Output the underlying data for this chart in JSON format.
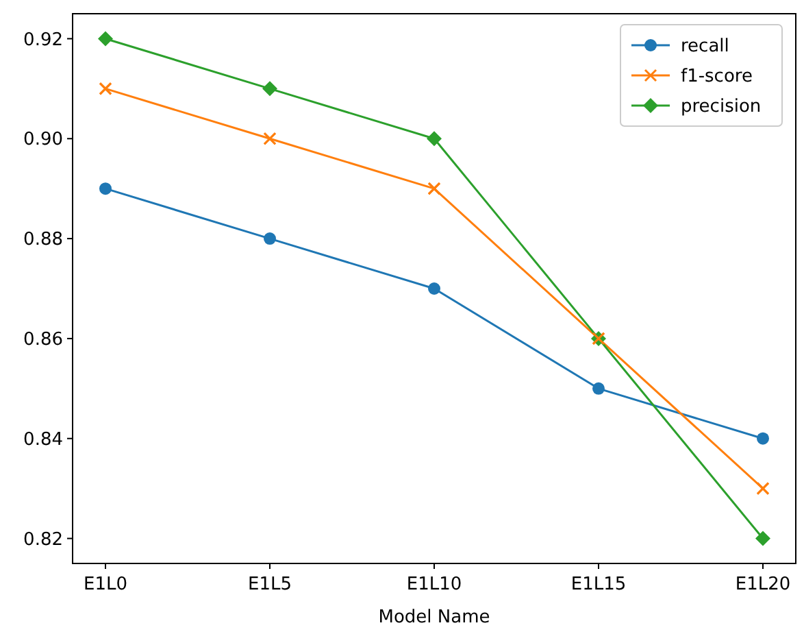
{
  "chart_data": {
    "type": "line",
    "xlabel": "Model Name",
    "categories": [
      "E1L0",
      "E1L5",
      "E1L10",
      "E1L15",
      "E1L20"
    ],
    "series": [
      {
        "name": "recall",
        "color": "#1f77b4",
        "marker": "circle",
        "values": [
          0.89,
          0.88,
          0.87,
          0.85,
          0.84
        ]
      },
      {
        "name": "f1-score",
        "color": "#ff7f0e",
        "marker": "cross",
        "values": [
          0.91,
          0.9,
          0.89,
          0.86,
          0.83
        ]
      },
      {
        "name": "precision",
        "color": "#2ca02c",
        "marker": "diamond",
        "values": [
          0.92,
          0.91,
          0.9,
          0.86,
          0.82
        ]
      }
    ],
    "ylim": [
      0.815,
      0.925
    ],
    "yticks": [
      {
        "value": 0.82,
        "label": "0.82"
      },
      {
        "value": 0.84,
        "label": "0.84"
      },
      {
        "value": 0.86,
        "label": "0.86"
      },
      {
        "value": 0.88,
        "label": "0.88"
      },
      {
        "value": 0.9,
        "label": "0.90"
      },
      {
        "value": 0.92,
        "label": "0.92"
      }
    ],
    "grid": false,
    "legend": "top right",
    "line_style": "solid"
  }
}
